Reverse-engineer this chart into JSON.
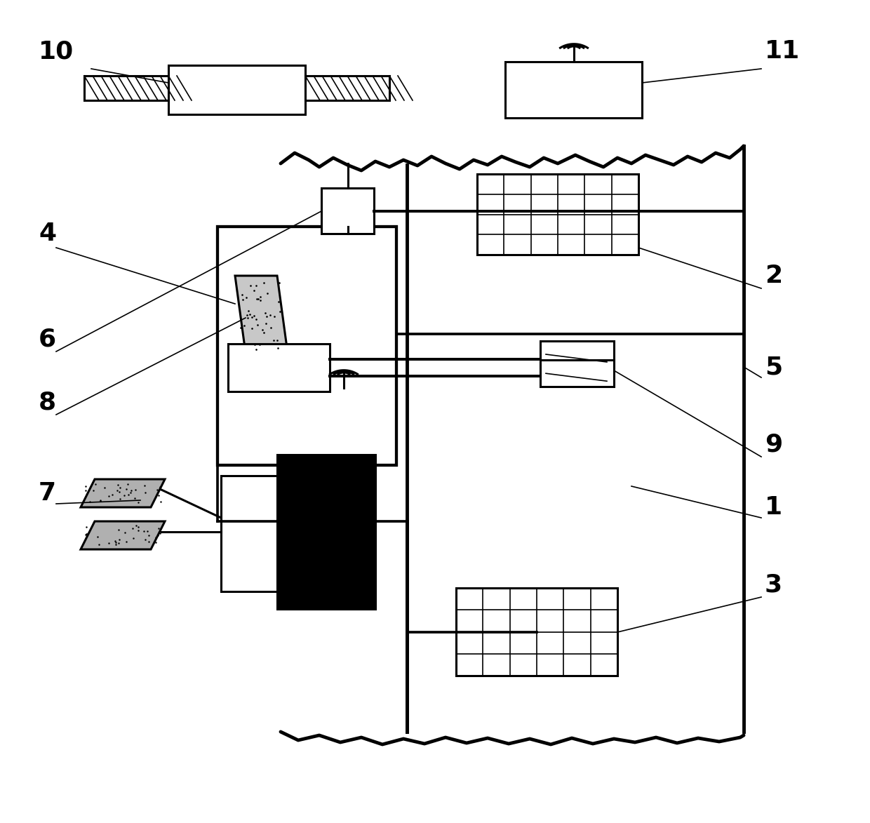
{
  "background": "#ffffff",
  "line_color": "#000000",
  "lw_thin": 1.2,
  "lw_med": 2.2,
  "lw_thick": 3.5,
  "label_fontsize": 26,
  "fig_width": 12.4,
  "fig_height": 11.73
}
